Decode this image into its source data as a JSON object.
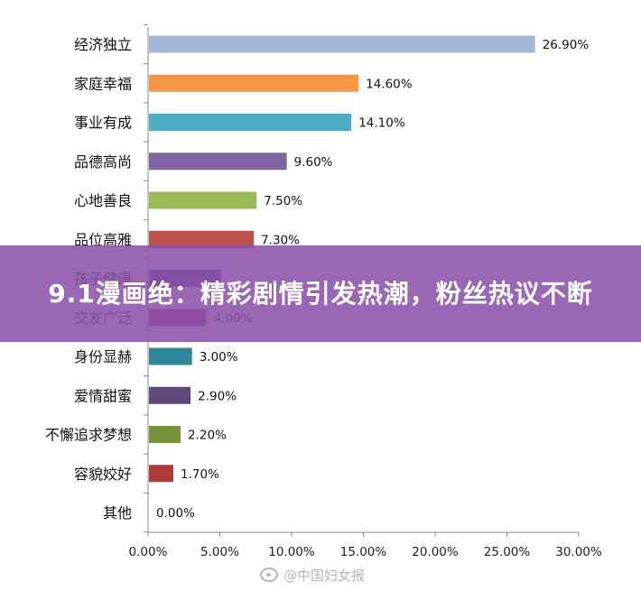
{
  "banner": {
    "title": "9.1漫画绝：精彩剧情引发热潮，粉丝热议不断"
  },
  "watermark": {
    "text": "@中国妇女报"
  },
  "chart_data": {
    "type": "bar",
    "orientation": "horizontal",
    "title": "",
    "xlabel": "",
    "ylabel": "",
    "xlim": [
      0,
      30
    ],
    "x_ticks": [
      "0.00%",
      "5.00%",
      "10.00%",
      "15.00%",
      "20.00%",
      "25.00%",
      "30.00%"
    ],
    "grid": false,
    "legend": "none",
    "categories": [
      "经济独立",
      "家庭幸福",
      "事业有成",
      "品德高尚",
      "心地善良",
      "品位高雅",
      "孩子健康",
      "交友广泛",
      "身份显赫",
      "爱情甜蜜",
      "不懈追求梦想",
      "容貌姣好",
      "其他"
    ],
    "values": [
      26.9,
      14.6,
      14.1,
      9.6,
      7.5,
      7.3,
      5.0,
      4.0,
      3.0,
      2.9,
      2.2,
      1.7,
      0.0
    ],
    "value_labels": [
      "26.90%",
      "14.60%",
      "14.10%",
      "9.60%",
      "7.50%",
      "7.30%",
      "",
      "4.00%",
      "3.00%",
      "2.90%",
      "2.20%",
      "1.70%",
      "0.00%"
    ],
    "colors": [
      "#a6b6d9",
      "#f79646",
      "#4bacc6",
      "#8064a2",
      "#9bbb59",
      "#c0504d",
      "#5a3a8c",
      "#8b2f5f",
      "#31869b",
      "#604a7b",
      "#77933c",
      "#b03a3a",
      "#000000"
    ]
  }
}
